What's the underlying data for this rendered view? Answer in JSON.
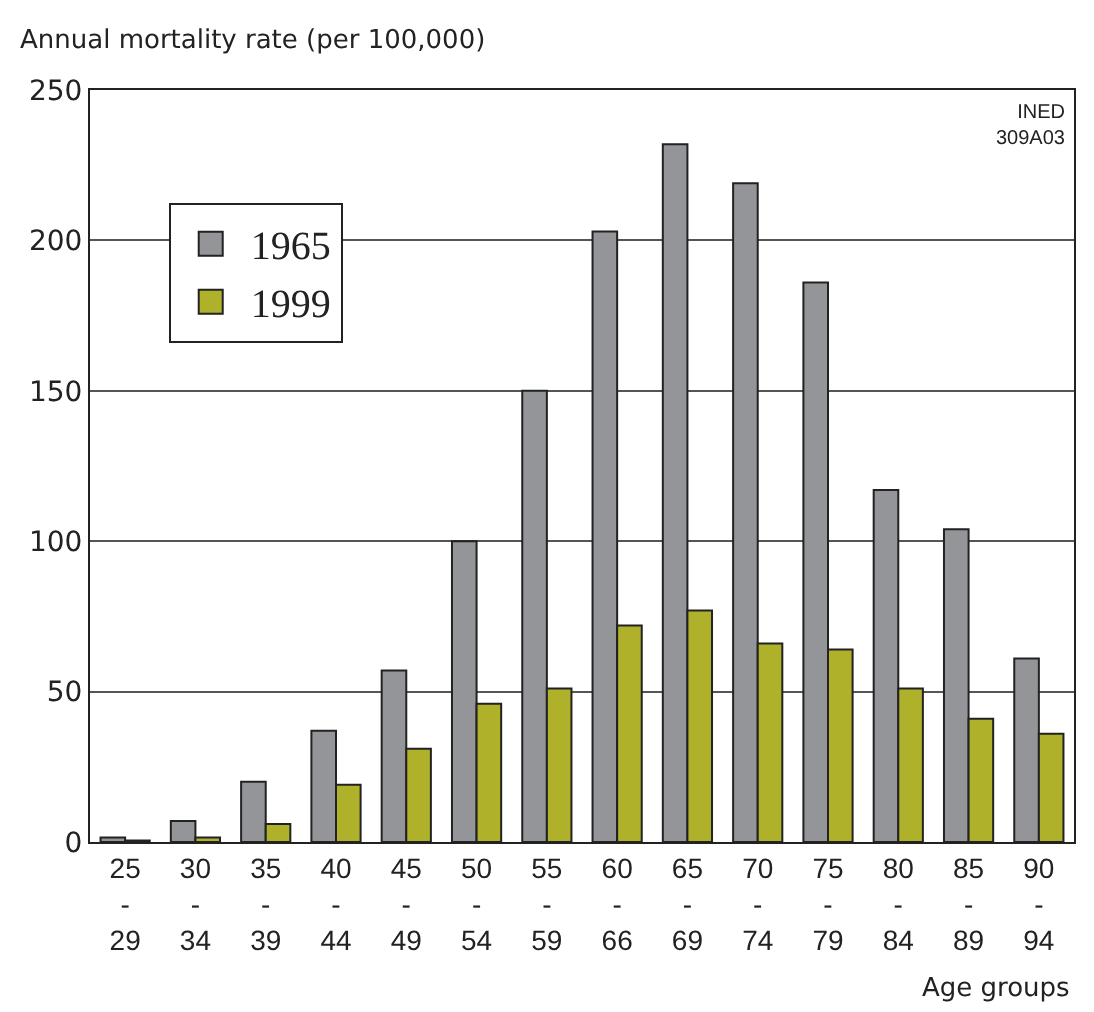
{
  "chart_data": {
    "type": "bar",
    "categories": [
      "25\n-\n29",
      "30\n-\n34",
      "35\n-\n39",
      "40\n-\n44",
      "45\n-\n49",
      "50\n-\n54",
      "55\n-\n59",
      "60\n-\n66",
      "65\n-\n69",
      "70\n-\n74",
      "75\n-\n79",
      "80\n-\n84",
      "85\n-\n89",
      "90\n-\n94"
    ],
    "series": [
      {
        "name": "1965",
        "color": "#939598",
        "values": [
          1.5,
          7,
          20,
          37,
          57,
          100,
          150,
          203,
          232,
          219,
          186,
          117,
          104,
          61
        ]
      },
      {
        "name": "1999",
        "color": "#b0b12a",
        "values": [
          0.5,
          1.5,
          6,
          19,
          31,
          46,
          51,
          72,
          77,
          66,
          64,
          51,
          41,
          36
        ]
      }
    ],
    "ylabel": "Annual mortality rate (per 100,000)",
    "xlabel": "Age groups",
    "annotations": [
      "INED\n309A03"
    ],
    "ylim": [
      0,
      250
    ],
    "yticks": [
      0,
      50,
      100,
      150,
      200,
      250
    ],
    "grid": "y",
    "legend": "top left"
  }
}
